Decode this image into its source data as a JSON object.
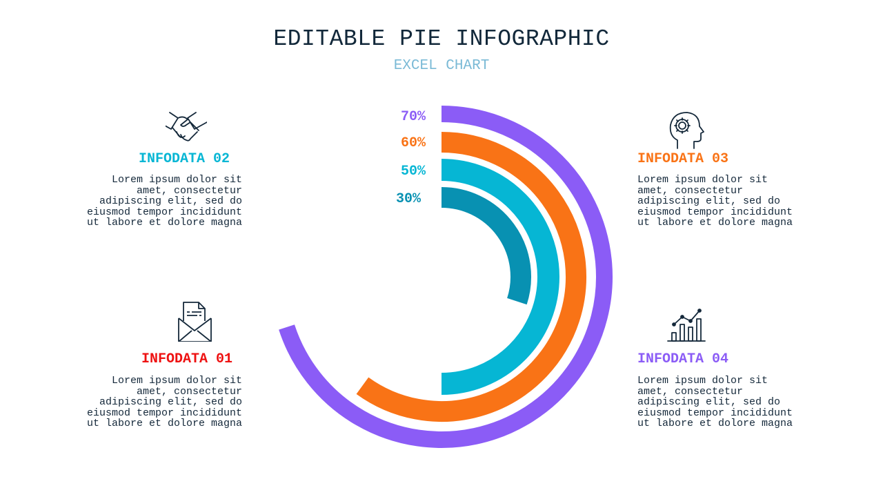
{
  "header": {
    "title": "EDITABLE PIE INFOGRAPHIC",
    "subtitle": "EXCEL CHART"
  },
  "colors": {
    "title": "#12283a",
    "subtitle": "#7bbad6",
    "text": "#14283a",
    "purple": "#8b5cf6",
    "orange": "#f97316",
    "cyan": "#06b6d4",
    "teal": "#0891b2",
    "red": "#ee1111"
  },
  "chart_data": {
    "type": "radial-bar",
    "series": [
      {
        "label": "70%",
        "value": 70,
        "color": "#8b5cf6"
      },
      {
        "label": "60%",
        "value": 60,
        "color": "#f97316"
      },
      {
        "label": "50%",
        "value": 50,
        "color": "#06b6d4"
      },
      {
        "label": "30%",
        "value": 30,
        "color": "#0891b2"
      }
    ]
  },
  "panels": [
    {
      "id": "p02",
      "heading": "INFODATA 02",
      "color": "#06b6d4",
      "icon": "handshake-icon",
      "body": "Lorem ipsum dolor sit\namet, consectetur\nadipiscing elit, sed do\neiusmod tempor incididunt\nut labore et dolore magna"
    },
    {
      "id": "p01",
      "heading": "INFODATA 01",
      "color": "#ee1111",
      "icon": "envelope-letter-icon",
      "body": "Lorem ipsum dolor sit\namet, consectetur\nadipiscing elit, sed do\neiusmod tempor incididunt\nut labore et dolore magna"
    },
    {
      "id": "p03",
      "heading": "INFODATA 03",
      "color": "#f97316",
      "icon": "head-gear-icon",
      "body": "Lorem ipsum dolor sit\namet, consectetur\nadipiscing elit, sed do\neiusmod tempor incididunt\nut labore et dolore magna"
    },
    {
      "id": "p04",
      "heading": "INFODATA 04",
      "color": "#8b5cf6",
      "icon": "growth-chart-icon",
      "body": "Lorem ipsum dolor sit\namet, consectetur\nadipiscing elit, sed do\neiusmod tempor incididunt\nut labore et dolore magna"
    }
  ]
}
